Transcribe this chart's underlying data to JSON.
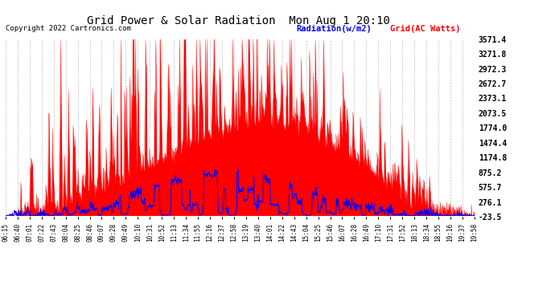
{
  "title": "Grid Power & Solar Radiation  Mon Aug 1 20:10",
  "copyright": "Copyright 2022 Cartronics.com",
  "legend_blue": "Radiation(w/m2)",
  "legend_red": "Grid(AC Watts)",
  "yticks": [
    3571.4,
    3271.8,
    2972.3,
    2672.7,
    2373.1,
    2073.5,
    1774.0,
    1474.4,
    1174.8,
    875.2,
    575.7,
    276.1,
    -23.5
  ],
  "ymin": -23.5,
  "ymax": 3571.4,
  "xtick_labels": [
    "06:15",
    "06:40",
    "07:01",
    "07:22",
    "07:43",
    "08:04",
    "08:25",
    "08:46",
    "09:07",
    "09:28",
    "09:49",
    "10:10",
    "10:31",
    "10:52",
    "11:13",
    "11:34",
    "11:55",
    "12:16",
    "12:37",
    "12:58",
    "13:19",
    "13:40",
    "14:01",
    "14:22",
    "14:43",
    "15:04",
    "15:25",
    "15:46",
    "16:07",
    "16:28",
    "16:49",
    "17:10",
    "17:31",
    "17:52",
    "18:13",
    "18:34",
    "18:55",
    "19:16",
    "19:37",
    "19:58"
  ],
  "background_color": "#ffffff",
  "grid_color": "#bbbbbb",
  "red_color": "#ff0000",
  "blue_color": "#0000ff",
  "title_color": "#000000",
  "copyright_color": "#000000"
}
